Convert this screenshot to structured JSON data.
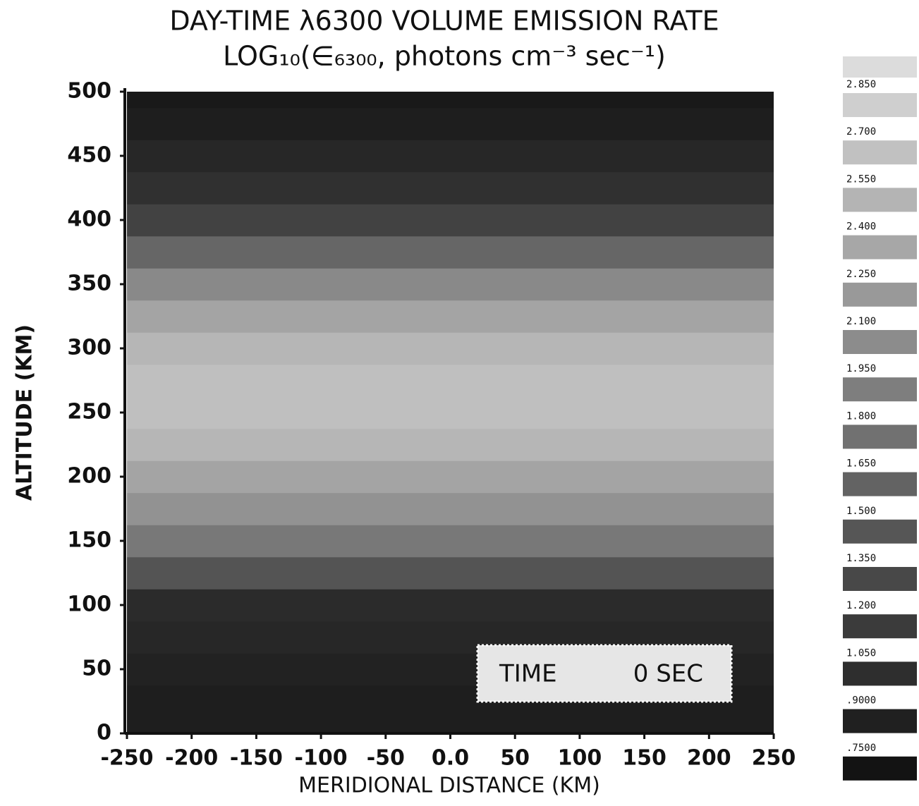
{
  "chart_data": {
    "type": "heatmap",
    "title": "DAY-TIME λ6300 VOLUME EMISSION RATE",
    "subtitle": "LOG₁₀(∈₆₃₀₀, photons cm⁻³ sec⁻¹)",
    "x_label": "MERIDIONAL DISTANCE (KM)",
    "y_label": "ALTITUDE (KM)",
    "annotations": [
      "TIME",
      "0 SEC"
    ],
    "xlim": [
      -250,
      250
    ],
    "xticks": [
      -250,
      -200,
      -150,
      -100,
      -50,
      {
        "value": 0,
        "label": "0.0"
      },
      50,
      100,
      150,
      200,
      250
    ],
    "ylim": [
      0,
      500
    ],
    "yticks": [
      0,
      50,
      100,
      150,
      200,
      250,
      300,
      350,
      400,
      450,
      500
    ],
    "y": [
      0,
      25,
      50,
      75,
      100,
      125,
      150,
      175,
      200,
      225,
      250,
      275,
      300,
      325,
      350,
      375,
      400,
      425,
      450,
      475,
      500
    ],
    "values": [
      0.8,
      0.8,
      0.85,
      0.9,
      0.95,
      1.4,
      1.8,
      2.1,
      2.3,
      2.5,
      2.6,
      2.6,
      2.5,
      2.3,
      2.0,
      1.6,
      1.2,
      1.0,
      0.9,
      0.8,
      0.75
    ],
    "colorbar_ticks": [
      {
        "value": 2.85,
        "label": "2.850"
      },
      {
        "value": 2.7,
        "label": "2.700"
      },
      {
        "value": 2.55,
        "label": "2.550"
      },
      {
        "value": 2.4,
        "label": "2.400"
      },
      {
        "value": 2.25,
        "label": "2.250"
      },
      {
        "value": 2.1,
        "label": "2.100"
      },
      {
        "value": 1.95,
        "label": "1.950"
      },
      {
        "value": 1.8,
        "label": "1.800"
      },
      {
        "value": 1.65,
        "label": "1.650"
      },
      {
        "value": 1.5,
        "label": "1.500"
      },
      {
        "value": 1.35,
        "label": "1.350"
      },
      {
        "value": 1.2,
        "label": "1.200"
      },
      {
        "value": 1.05,
        "label": "1.050"
      },
      {
        "value": 0.9,
        "label": ".9000"
      },
      {
        "value": 0.75,
        "label": ".7500"
      }
    ]
  }
}
